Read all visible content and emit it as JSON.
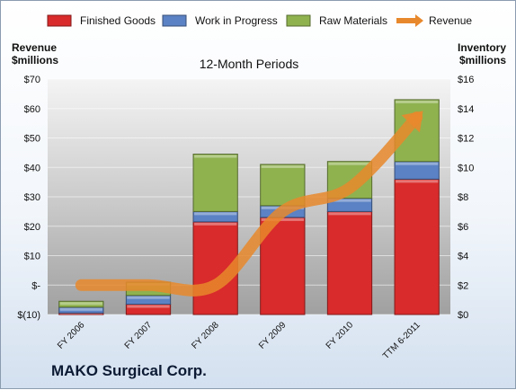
{
  "chart_data": {
    "type": "bar",
    "stacked": true,
    "title": "12-Month Periods",
    "company": "MAKO Surgical Corp.",
    "left_axis_label": [
      "Revenue",
      "$millions"
    ],
    "right_axis_label": [
      "Inventory",
      "$millions"
    ],
    "categories": [
      "FY 2006",
      "FY 2007",
      "FY 2008",
      "FY 2009",
      "FY 2010",
      "TTM 6-2011"
    ],
    "left_axis": {
      "ylim": [
        -10,
        70
      ],
      "ticks": [
        -10,
        0,
        10,
        20,
        30,
        40,
        50,
        60,
        70
      ],
      "tick_labels": [
        "$(10)",
        "$-",
        "$10",
        "$20",
        "$30",
        "$40",
        "$50",
        "$60",
        "$70"
      ]
    },
    "right_axis": {
      "ylim": [
        0,
        16
      ],
      "ticks": [
        0,
        2,
        4,
        6,
        8,
        10,
        12,
        14,
        16
      ],
      "tick_labels": [
        "$0",
        "$2",
        "$4",
        "$6",
        "$8",
        "$10",
        "$12",
        "$14",
        "$16"
      ]
    },
    "series": [
      {
        "name": "Finished Goods",
        "axis": "right",
        "color": "#d92b2b",
        "values": [
          0.1,
          0.7,
          6.3,
          6.6,
          7.0,
          9.2
        ]
      },
      {
        "name": "Work in Progress",
        "axis": "right",
        "color": "#5b82c4",
        "values": [
          0.4,
          0.6,
          0.7,
          0.8,
          0.9,
          1.2
        ]
      },
      {
        "name": "Raw Materials",
        "axis": "right",
        "color": "#8fb24f",
        "values": [
          0.4,
          0.9,
          3.9,
          2.8,
          2.5,
          4.2
        ]
      }
    ],
    "line_series": {
      "name": "Revenue",
      "axis": "left",
      "color": "#e8882c",
      "values": [
        0,
        0,
        0,
        25,
        33,
        57
      ]
    },
    "legend": "top"
  }
}
